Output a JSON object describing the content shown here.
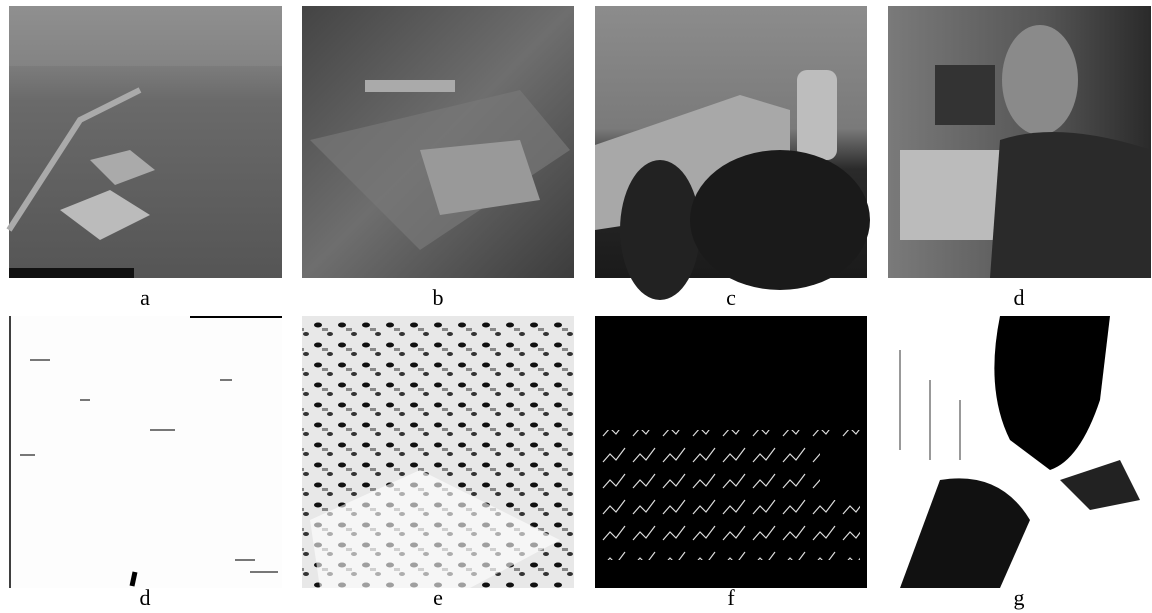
{
  "figure": {
    "panels": [
      {
        "label": "a"
      },
      {
        "label": "b"
      },
      {
        "label": "c"
      },
      {
        "label": "d"
      },
      {
        "label": "d"
      },
      {
        "label": "e"
      },
      {
        "label": "f"
      },
      {
        "label": "g"
      }
    ]
  }
}
